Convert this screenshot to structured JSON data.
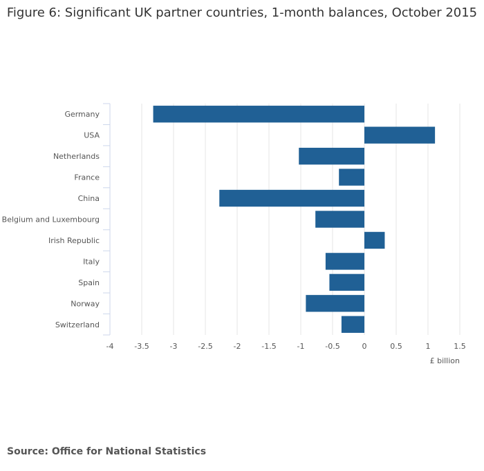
{
  "title": "Figure 6: Significant UK partner countries, 1-month balances, October 2015",
  "source": "Source: Office for National Statistics",
  "colors": {
    "bar": "#206095",
    "grid": "#e6e6e6",
    "axis": "#ccd6eb"
  },
  "chart_data": {
    "type": "bar",
    "orientation": "horizontal",
    "categories": [
      "Germany",
      "USA",
      "Netherlands",
      "France",
      "China",
      "Belgium and Luxembourg",
      "Irish Republic",
      "Italy",
      "Spain",
      "Norway",
      "Switzerland"
    ],
    "values": [
      -3.32,
      1.11,
      -1.03,
      -0.4,
      -2.28,
      -0.77,
      0.32,
      -0.61,
      -0.55,
      -0.92,
      -0.36
    ],
    "xlabel": "£ billion",
    "xlim": [
      -4,
      1.5
    ],
    "xticks": [
      "-4",
      "-3.5",
      "-3",
      "-2.5",
      "-2",
      "-1.5",
      "-1",
      "-0.5",
      "0",
      "0.5",
      "1",
      "1.5"
    ],
    "grid": true,
    "legend": "none"
  }
}
